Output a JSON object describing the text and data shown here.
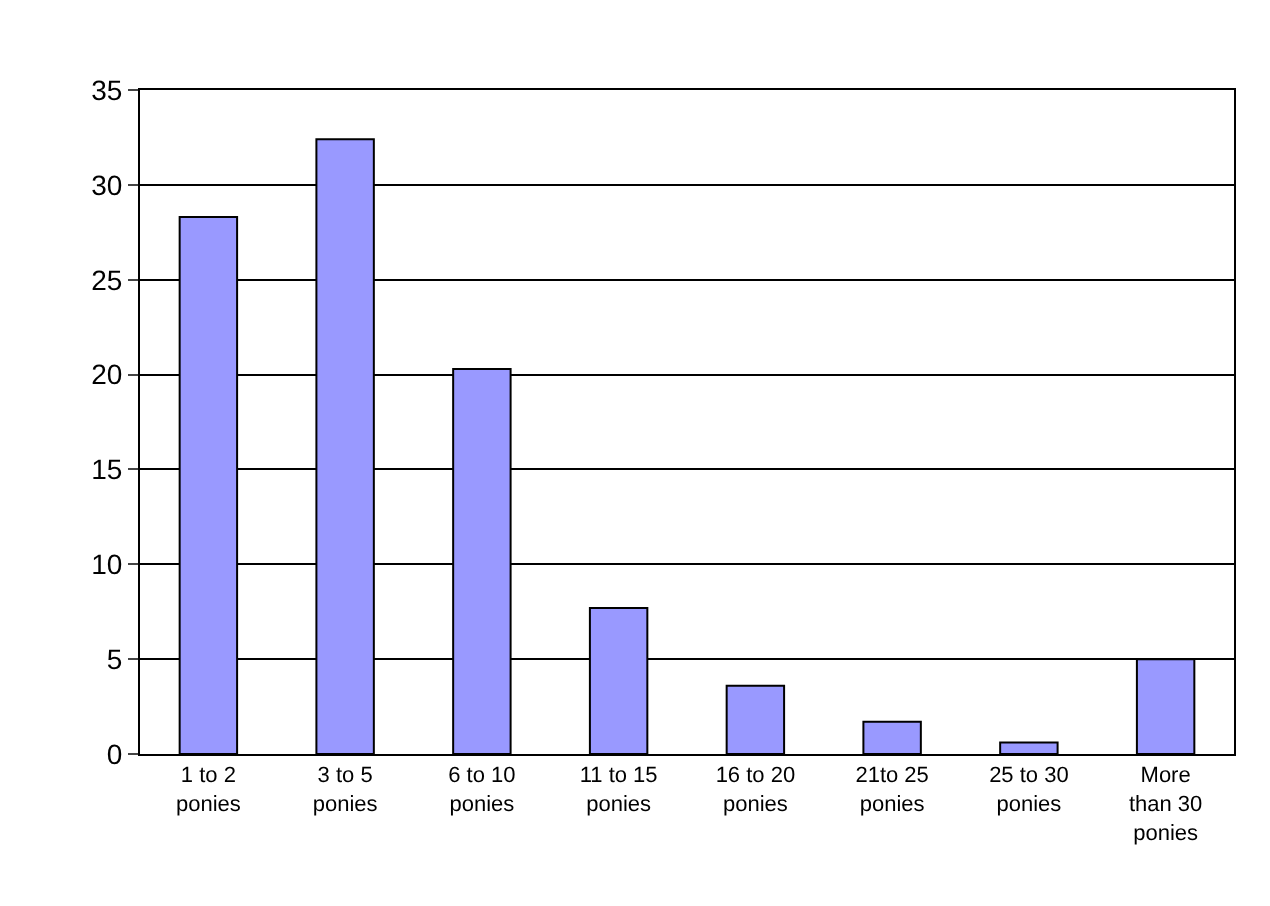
{
  "chart_data": {
    "type": "bar",
    "categories": [
      "1 to 2 ponies",
      "3 to 5 ponies",
      "6 to 10 ponies",
      "11 to 15 ponies",
      "16 to 20 ponies",
      "21to 25 ponies",
      "25 to 30 ponies",
      "More than 30 ponies"
    ],
    "values": [
      28.3,
      32.4,
      20.3,
      7.7,
      3.6,
      1.7,
      0.6,
      5.0
    ],
    "color": "#9999ff",
    "ylim": [
      0,
      35
    ],
    "yticks": [
      0,
      5,
      10,
      15,
      20,
      25,
      30,
      35
    ],
    "grid": "y"
  }
}
